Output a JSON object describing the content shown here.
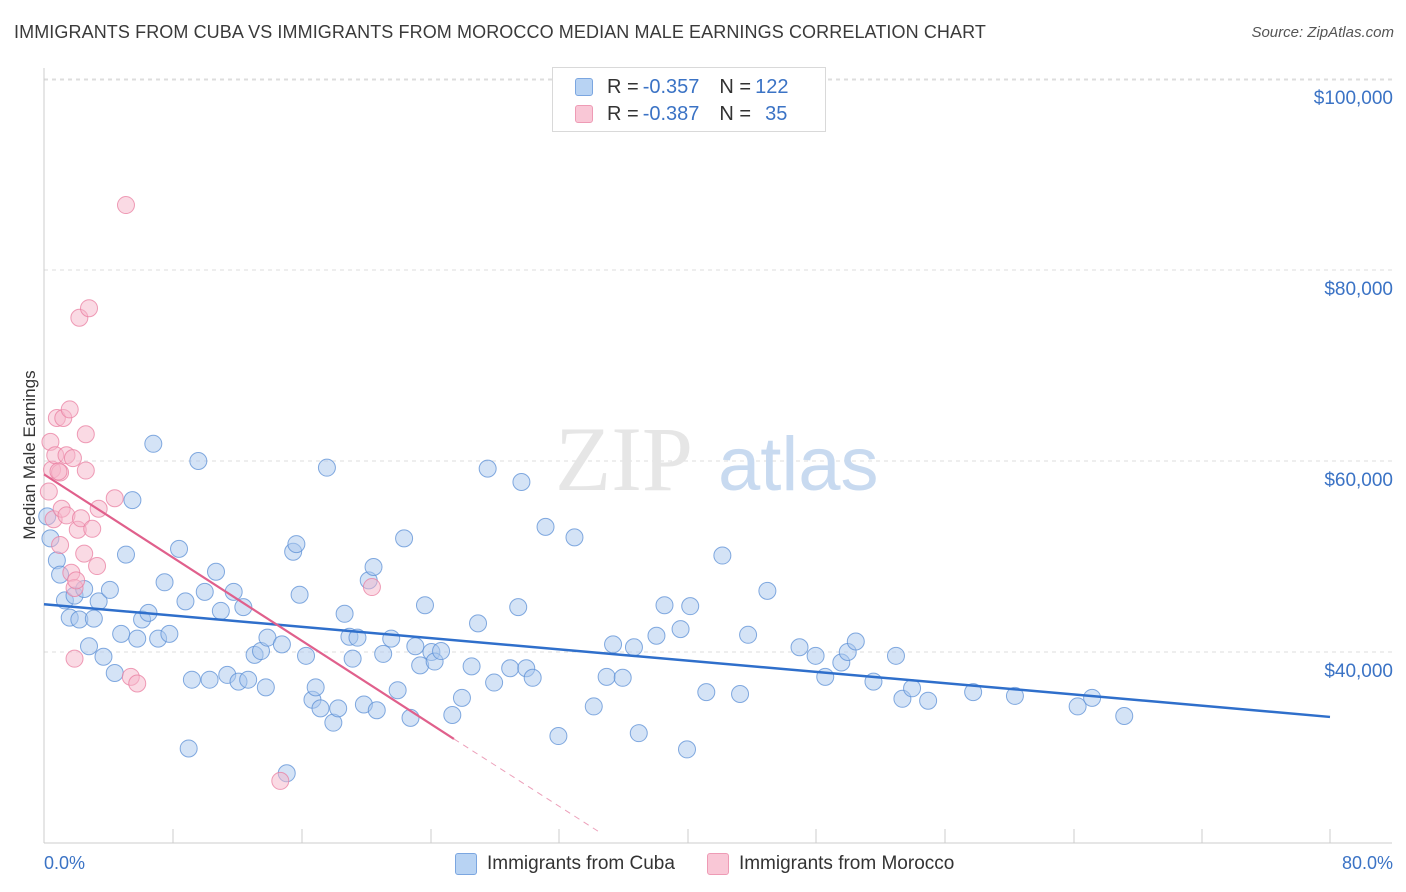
{
  "header": {
    "title": "IMMIGRANTS FROM CUBA VS IMMIGRANTS FROM MOROCCO MEDIAN MALE EARNINGS CORRELATION CHART",
    "source": "Source: ZipAtlas.com"
  },
  "watermark": {
    "zip": "ZIP",
    "atlas": "atlas"
  },
  "colors": {
    "cuba_fill": "#a9c8ee",
    "cuba_stroke": "#5b8fd6",
    "cuba_line": "#2f6fcb",
    "morocco_fill": "#f6b6ca",
    "morocco_stroke": "#e97ea0",
    "morocco_line": "#e0608c",
    "axis_label": "#3b73c5",
    "grid": "#dddddd"
  },
  "legend": {
    "cuba": {
      "r_label": "R = ",
      "r_value": "-0.357",
      "n_label": "N = ",
      "n_value": "122"
    },
    "morocco": {
      "r_label": "R = ",
      "r_value": "-0.387",
      "n_label": "N = ",
      "n_value": "35"
    }
  },
  "bottom_legend": {
    "cuba": "Immigrants from Cuba",
    "morocco": "Immigrants from Morocco"
  },
  "chart_data": {
    "type": "scatter",
    "title": "IMMIGRANTS FROM CUBA VS IMMIGRANTS FROM MOROCCO MEDIAN MALE EARNINGS CORRELATION CHART",
    "xlabel": "",
    "ylabel": "Median Male Earnings",
    "xlim": [
      0,
      80
    ],
    "ylim": [
      18500,
      102000
    ],
    "x_tick_labels": [
      "0.0%",
      "80.0%"
    ],
    "y_ticks": [
      {
        "value": 40000,
        "label": "$40,000"
      },
      {
        "value": 60000,
        "label": "$60,000"
      },
      {
        "value": 80000,
        "label": "$80,000"
      },
      {
        "value": 100000,
        "label": "$100,000"
      }
    ],
    "series": [
      {
        "name": "Immigrants from Cuba",
        "r": -0.357,
        "n": 122,
        "trend": {
          "x": [
            0,
            80
          ],
          "y": [
            45000,
            33200
          ]
        },
        "points": [
          [
            0.2,
            54200
          ],
          [
            0.4,
            51900
          ],
          [
            0.8,
            49600
          ],
          [
            1.0,
            48100
          ],
          [
            1.3,
            45400
          ],
          [
            1.6,
            43600
          ],
          [
            1.9,
            45900
          ],
          [
            2.2,
            43400
          ],
          [
            2.5,
            46600
          ],
          [
            2.8,
            40600
          ],
          [
            3.1,
            43500
          ],
          [
            3.4,
            45300
          ],
          [
            3.7,
            39500
          ],
          [
            4.1,
            46500
          ],
          [
            4.4,
            37800
          ],
          [
            4.8,
            41900
          ],
          [
            5.1,
            50200
          ],
          [
            5.5,
            55900
          ],
          [
            5.8,
            41400
          ],
          [
            6.1,
            43400
          ],
          [
            6.5,
            44100
          ],
          [
            6.8,
            61800
          ],
          [
            7.1,
            41400
          ],
          [
            7.5,
            47300
          ],
          [
            7.8,
            41900
          ],
          [
            8.4,
            50800
          ],
          [
            8.8,
            45300
          ],
          [
            9.2,
            37100
          ],
          [
            9.6,
            60000
          ],
          [
            10.0,
            46300
          ],
          [
            10.3,
            37100
          ],
          [
            10.7,
            48400
          ],
          [
            11.0,
            44300
          ],
          [
            11.4,
            37600
          ],
          [
            11.8,
            46300
          ],
          [
            12.1,
            36900
          ],
          [
            12.4,
            44700
          ],
          [
            12.7,
            37100
          ],
          [
            13.1,
            39700
          ],
          [
            13.5,
            40100
          ],
          [
            13.8,
            36300
          ],
          [
            13.9,
            41500
          ],
          [
            14.8,
            40800
          ],
          [
            15.1,
            27300
          ],
          [
            15.5,
            50500
          ],
          [
            15.7,
            51300
          ],
          [
            15.9,
            46000
          ],
          [
            16.3,
            39600
          ],
          [
            16.7,
            35000
          ],
          [
            16.9,
            36300
          ],
          [
            17.2,
            34100
          ],
          [
            17.6,
            59300
          ],
          [
            18.0,
            32600
          ],
          [
            18.3,
            34100
          ],
          [
            18.7,
            44000
          ],
          [
            19.0,
            41600
          ],
          [
            19.2,
            39300
          ],
          [
            19.5,
            41500
          ],
          [
            19.9,
            34500
          ],
          [
            20.2,
            47500
          ],
          [
            20.5,
            48900
          ],
          [
            20.7,
            33900
          ],
          [
            21.1,
            39800
          ],
          [
            21.6,
            41400
          ],
          [
            22.0,
            36000
          ],
          [
            22.4,
            51900
          ],
          [
            22.8,
            33100
          ],
          [
            23.1,
            40600
          ],
          [
            23.4,
            38600
          ],
          [
            23.7,
            44900
          ],
          [
            24.1,
            40000
          ],
          [
            24.3,
            39000
          ],
          [
            24.7,
            40100
          ],
          [
            25.4,
            33400
          ],
          [
            26.0,
            35200
          ],
          [
            26.6,
            38500
          ],
          [
            27.0,
            43000
          ],
          [
            27.6,
            59200
          ],
          [
            28.0,
            36800
          ],
          [
            29.0,
            38300
          ],
          [
            29.5,
            44700
          ],
          [
            29.7,
            57800
          ],
          [
            30.0,
            38300
          ],
          [
            30.4,
            37300
          ],
          [
            31.2,
            53100
          ],
          [
            32.0,
            31200
          ],
          [
            33.0,
            52000
          ],
          [
            34.2,
            34300
          ],
          [
            35.0,
            37400
          ],
          [
            35.4,
            40800
          ],
          [
            36.0,
            37300
          ],
          [
            36.7,
            40500
          ],
          [
            37.0,
            31500
          ],
          [
            38.1,
            41700
          ],
          [
            38.6,
            44900
          ],
          [
            39.6,
            42400
          ],
          [
            40.0,
            29800
          ],
          [
            40.2,
            44800
          ],
          [
            41.2,
            35800
          ],
          [
            42.2,
            50100
          ],
          [
            43.3,
            35600
          ],
          [
            43.8,
            41800
          ],
          [
            45.0,
            46400
          ],
          [
            47.0,
            40500
          ],
          [
            48.0,
            39600
          ],
          [
            48.6,
            37400
          ],
          [
            49.6,
            38900
          ],
          [
            50.0,
            40000
          ],
          [
            50.5,
            41100
          ],
          [
            51.6,
            36900
          ],
          [
            53.0,
            39600
          ],
          [
            53.4,
            35100
          ],
          [
            54.0,
            36200
          ],
          [
            55.0,
            34900
          ],
          [
            57.8,
            35800
          ],
          [
            60.4,
            35400
          ],
          [
            64.3,
            34300
          ],
          [
            65.2,
            35200
          ],
          [
            67.2,
            33300
          ],
          [
            9.0,
            29900
          ]
        ]
      },
      {
        "name": "Immigrants from Morocco",
        "r": -0.387,
        "n": 35,
        "trend": {
          "x": [
            0,
            25.5
          ],
          "y": [
            58600,
            30900
          ]
        },
        "trend_dashed": {
          "x": [
            25.5,
            34.5
          ],
          "y": [
            30900,
            21200
          ]
        },
        "points": [
          [
            0.3,
            56800
          ],
          [
            0.4,
            62000
          ],
          [
            0.5,
            59100
          ],
          [
            0.6,
            53900
          ],
          [
            0.7,
            60600
          ],
          [
            0.8,
            64500
          ],
          [
            1.0,
            51200
          ],
          [
            1.0,
            58800
          ],
          [
            1.1,
            55000
          ],
          [
            1.2,
            64500
          ],
          [
            1.4,
            60600
          ],
          [
            1.4,
            54300
          ],
          [
            1.6,
            65400
          ],
          [
            1.7,
            48300
          ],
          [
            1.8,
            60300
          ],
          [
            1.9,
            39300
          ],
          [
            1.9,
            46700
          ],
          [
            2.0,
            47500
          ],
          [
            2.1,
            52800
          ],
          [
            2.2,
            75000
          ],
          [
            2.3,
            54000
          ],
          [
            2.5,
            50300
          ],
          [
            2.6,
            59000
          ],
          [
            2.6,
            62800
          ],
          [
            2.8,
            76000
          ],
          [
            3.0,
            52900
          ],
          [
            3.3,
            49000
          ],
          [
            3.4,
            55000
          ],
          [
            4.4,
            56100
          ],
          [
            5.1,
            86800
          ],
          [
            5.4,
            37400
          ],
          [
            5.8,
            36700
          ],
          [
            14.7,
            26500
          ],
          [
            20.4,
            46800
          ],
          [
            0.9,
            58900
          ]
        ]
      }
    ]
  }
}
